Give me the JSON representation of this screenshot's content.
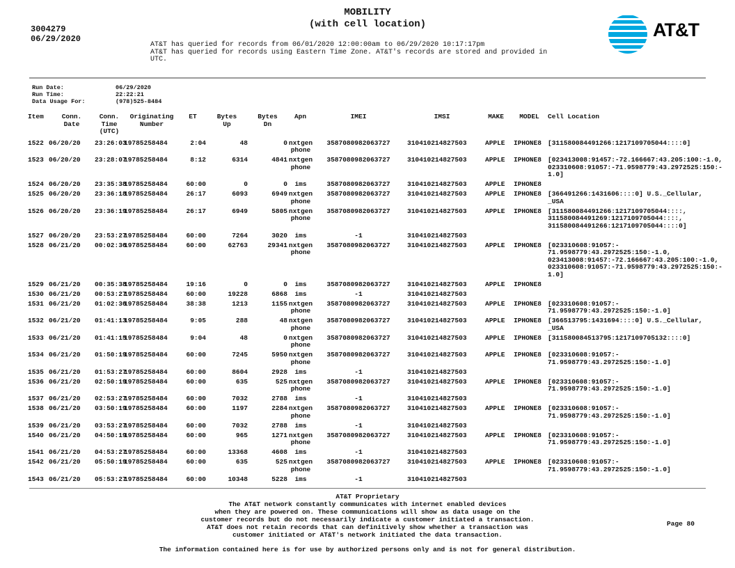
{
  "header": {
    "title_line1": "MOBILITY",
    "title_line2": "(with cell location)",
    "account_number": "3004279",
    "account_date": "06/29/2020",
    "query_lines": [
      "AT&T has queried for records from 06/01/2020 12:00:00am to 06/29/2020 10:17:17pm",
      "AT&T has queried for records using Eastern Time Zone. AT&T's records are stored and provided in",
      "UTC."
    ],
    "logo_text": "AT&T",
    "logo_color": "#00a8e0"
  },
  "run_info": [
    {
      "label": "Run Date:",
      "value": "06/29/2020"
    },
    {
      "label": "Run Time:",
      "value": "22:22:21"
    },
    {
      "label": "Data Usage For:",
      "value": "(978)525-8484"
    }
  ],
  "columns": [
    "Item",
    "Conn.\nDate",
    "Conn.\nTime\n(UTC)",
    "Originating\nNumber",
    "ET",
    "Bytes\nUp",
    "Bytes\nDn",
    "Apn",
    "IMEI",
    "IMSI",
    "MAKE",
    "MODEL",
    "Cell Location"
  ],
  "rows": [
    {
      "item": "1522",
      "date": "06/20/20",
      "time": "23:26:03",
      "number": "19785258484",
      "et": "2:04",
      "up": "48",
      "dn": "0",
      "apn": "nxtgenphone",
      "imei": "3587080982063727",
      "imsi": "310410214827503",
      "make": "APPLE",
      "model": "IPHONE8",
      "cell": [
        "[311580084491266:1217109705044::::0]"
      ]
    },
    {
      "item": "1523",
      "date": "06/20/20",
      "time": "23:28:07",
      "number": "19785258484",
      "et": "8:12",
      "up": "6314",
      "dn": "4841",
      "apn": "nxtgenphone",
      "imei": "3587080982063727",
      "imsi": "310410214827503",
      "make": "APPLE",
      "model": "IPHONE8",
      "cell": [
        "[023413008:91457:-72.166667:43.205:100:-1.0,",
        "023310608:91057:-71.9598779:43.2972525:150:-",
        "1.0]"
      ]
    },
    {
      "item": "1524",
      "date": "06/20/20",
      "time": "23:35:38",
      "number": "19785258484",
      "et": "60:00",
      "up": "0",
      "dn": "0",
      "apn": "ims",
      "imei": "3587080982063727",
      "imsi": "310410214827503",
      "make": "APPLE",
      "model": "IPHONE8",
      "cell": []
    },
    {
      "item": "1525",
      "date": "06/20/20",
      "time": "23:36:18",
      "number": "19785258484",
      "et": "26:17",
      "up": "6093",
      "dn": "6949",
      "apn": "nxtgenphone",
      "imei": "3587080982063727",
      "imsi": "310410214827503",
      "make": "APPLE",
      "model": "IPHONE8",
      "cell": [
        "[366491266:1431606::::0] U.S._Cellular,",
        "_USA"
      ]
    },
    {
      "item": "1526",
      "date": "06/20/20",
      "time": "23:36:19",
      "number": "19785258484",
      "et": "26:17",
      "up": "6949",
      "dn": "5805",
      "apn": "nxtgenphone",
      "imei": "3587080982063727",
      "imsi": "310410214827503",
      "make": "APPLE",
      "model": "IPHONE8",
      "cell": [
        "[311580084491266:1217109705044::::,",
        "311580084491269:1217109705044::::,",
        "311580084491266:1217109705044::::0]"
      ]
    },
    {
      "item": "1527",
      "date": "06/20/20",
      "time": "23:53:27",
      "number": "19785258484",
      "et": "60:00",
      "up": "7264",
      "dn": "3020",
      "apn": "ims",
      "imei": "-1",
      "imsi": "310410214827503",
      "make": "",
      "model": "",
      "cell": []
    },
    {
      "item": "1528",
      "date": "06/21/20",
      "time": "00:02:36",
      "number": "19785258484",
      "et": "60:00",
      "up": "62763",
      "dn": "29341",
      "apn": "nxtgenphone",
      "imei": "3587080982063727",
      "imsi": "310410214827503",
      "make": "APPLE",
      "model": "IPHONE8",
      "cell": [
        "[023310608:91057:-",
        "71.9598779:43.2972525:150:-1.0,",
        "023413008:91457:-72.166667:43.205:100:-1.0,",
        "023310608:91057:-71.9598779:43.2972525:150:-",
        "1.0]"
      ]
    },
    {
      "item": "1529",
      "date": "06/21/20",
      "time": "00:35:38",
      "number": "19785258484",
      "et": "19:16",
      "up": "0",
      "dn": "0",
      "apn": "ims",
      "imei": "3587080982063727",
      "imsi": "310410214827503",
      "make": "APPLE",
      "model": "IPHONE8",
      "cell": []
    },
    {
      "item": "1530",
      "date": "06/21/20",
      "time": "00:53:27",
      "number": "19785258484",
      "et": "60:00",
      "up": "19228",
      "dn": "6868",
      "apn": "ims",
      "imei": "-1",
      "imsi": "310410214827503",
      "make": "",
      "model": "",
      "cell": []
    },
    {
      "item": "1531",
      "date": "06/21/20",
      "time": "01:02:36",
      "number": "19785258484",
      "et": "38:38",
      "up": "1213",
      "dn": "1155",
      "apn": "nxtgenphone",
      "imei": "3587080982063727",
      "imsi": "310410214827503",
      "make": "APPLE",
      "model": "IPHONE8",
      "cell": [
        "[023310608:91057:-",
        "71.9598779:43.2972525:150:-1.0]"
      ]
    },
    {
      "item": "1532",
      "date": "06/21/20",
      "time": "01:41:13",
      "number": "19785258484",
      "et": "9:05",
      "up": "288",
      "dn": "48",
      "apn": "nxtgenphone",
      "imei": "3587080982063727",
      "imsi": "310410214827503",
      "make": "APPLE",
      "model": "IPHONE8",
      "cell": [
        "[366513795:1431694::::0] U.S._Cellular,",
        "_USA"
      ]
    },
    {
      "item": "1533",
      "date": "06/21/20",
      "time": "01:41:15",
      "number": "19785258484",
      "et": "9:04",
      "up": "48",
      "dn": "0",
      "apn": "nxtgenphone",
      "imei": "3587080982063727",
      "imsi": "310410214827503",
      "make": "APPLE",
      "model": "IPHONE8",
      "cell": [
        "[311580084513795:1217109705132::::0]"
      ]
    },
    {
      "item": "1534",
      "date": "06/21/20",
      "time": "01:50:19",
      "number": "19785258484",
      "et": "60:00",
      "up": "7245",
      "dn": "5950",
      "apn": "nxtgenphone",
      "imei": "3587080982063727",
      "imsi": "310410214827503",
      "make": "APPLE",
      "model": "IPHONE8",
      "cell": [
        "[023310608:91057:-",
        "71.9598779:43.2972525:150:-1.0]"
      ]
    },
    {
      "item": "1535",
      "date": "06/21/20",
      "time": "01:53:27",
      "number": "19785258484",
      "et": "60:00",
      "up": "8604",
      "dn": "2928",
      "apn": "ims",
      "imei": "-1",
      "imsi": "310410214827503",
      "make": "",
      "model": "",
      "cell": []
    },
    {
      "item": "1536",
      "date": "06/21/20",
      "time": "02:50:19",
      "number": "19785258484",
      "et": "60:00",
      "up": "635",
      "dn": "525",
      "apn": "nxtgenphone",
      "imei": "3587080982063727",
      "imsi": "310410214827503",
      "make": "APPLE",
      "model": "IPHONE8",
      "cell": [
        "[023310608:91057:-",
        "71.9598779:43.2972525:150:-1.0]"
      ]
    },
    {
      "item": "1537",
      "date": "06/21/20",
      "time": "02:53:27",
      "number": "19785258484",
      "et": "60:00",
      "up": "7032",
      "dn": "2788",
      "apn": "ims",
      "imei": "-1",
      "imsi": "310410214827503",
      "make": "",
      "model": "",
      "cell": []
    },
    {
      "item": "1538",
      "date": "06/21/20",
      "time": "03:50:19",
      "number": "19785258484",
      "et": "60:00",
      "up": "1197",
      "dn": "2284",
      "apn": "nxtgenphone",
      "imei": "3587080982063727",
      "imsi": "310410214827503",
      "make": "APPLE",
      "model": "IPHONE8",
      "cell": [
        "[023310608:91057:-",
        "71.9598779:43.2972525:150:-1.0]"
      ]
    },
    {
      "item": "1539",
      "date": "06/21/20",
      "time": "03:53:27",
      "number": "19785258484",
      "et": "60:00",
      "up": "7032",
      "dn": "2788",
      "apn": "ims",
      "imei": "-1",
      "imsi": "310410214827503",
      "make": "",
      "model": "",
      "cell": []
    },
    {
      "item": "1540",
      "date": "06/21/20",
      "time": "04:50:19",
      "number": "19785258484",
      "et": "60:00",
      "up": "965",
      "dn": "1271",
      "apn": "nxtgenphone",
      "imei": "3587080982063727",
      "imsi": "310410214827503",
      "make": "APPLE",
      "model": "IPHONE8",
      "cell": [
        "[023310608:91057:-",
        "71.9598779:43.2972525:150:-1.0]"
      ]
    },
    {
      "item": "1541",
      "date": "06/21/20",
      "time": "04:53:27",
      "number": "19785258484",
      "et": "60:00",
      "up": "13368",
      "dn": "4608",
      "apn": "ims",
      "imei": "-1",
      "imsi": "310410214827503",
      "make": "",
      "model": "",
      "cell": []
    },
    {
      "item": "1542",
      "date": "06/21/20",
      "time": "05:50:19",
      "number": "19785258484",
      "et": "60:00",
      "up": "635",
      "dn": "525",
      "apn": "nxtgenphone",
      "imei": "3587080982063727",
      "imsi": "310410214827503",
      "make": "APPLE",
      "model": "IPHONE8",
      "cell": [
        "[023310608:91057:-",
        "71.9598779:43.2972525:150:-1.0]"
      ]
    },
    {
      "item": "1543",
      "date": "06/21/20",
      "time": "05:53:27",
      "number": "19785258484",
      "et": "60:00",
      "up": "10348",
      "dn": "5228",
      "apn": "ims",
      "imei": "-1",
      "imsi": "310410214827503",
      "make": "",
      "model": "",
      "cell": []
    }
  ],
  "footer": {
    "lines": [
      "AT&T Proprietary",
      "The AT&T network constantly communicates with internet enabled devices",
      "when they are powered on. These communications will show as data usage on the",
      "customer records but do not necessarily indicate a customer initiated a transaction.",
      "AT&T does not retain records that can definitively show whether a transaction was",
      "customer initiated or AT&T's network initiated the data transaction."
    ],
    "distribution": "The information contained here is for use by authorized persons only and is not for general distribution.",
    "page": "Page 80"
  }
}
